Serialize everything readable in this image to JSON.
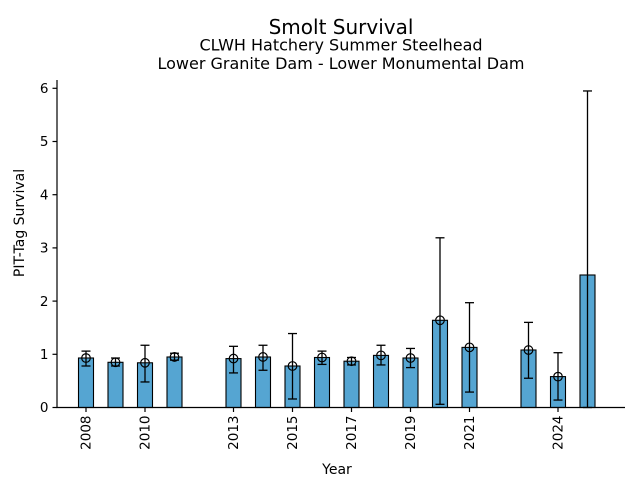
{
  "chart_data": {
    "type": "bar",
    "title": "Smolt Survival",
    "subtitle_line1": "CLWH Hatchery Summer Steelhead",
    "subtitle_line2": "Lower Granite Dam - Lower Monumental Dam",
    "xlabel": "Year",
    "ylabel": "PIT-Tag Survival",
    "ylim": [
      0,
      6.15
    ],
    "yticks": [
      0,
      1,
      2,
      3,
      4,
      5,
      6
    ],
    "xlim": [
      2007.0,
      2026.3
    ],
    "xticks": [
      2008,
      2010,
      2013,
      2015,
      2017,
      2019,
      2021,
      2024
    ],
    "grid": false,
    "legend": "none",
    "bar_color": "#55A5D2",
    "bar_edge_color": "#000000",
    "errorbar_color": "#000000",
    "marker_style": "open-circle",
    "points": [
      {
        "year": 2008,
        "value": 0.93,
        "err_low": 0.78,
        "err_high": 1.06,
        "marker": true
      },
      {
        "year": 2009,
        "value": 0.85,
        "err_low": 0.78,
        "err_high": 0.93,
        "marker": true
      },
      {
        "year": 2010,
        "value": 0.84,
        "err_low": 0.48,
        "err_high": 1.17,
        "marker": true
      },
      {
        "year": 2011,
        "value": 0.95,
        "err_low": 0.89,
        "err_high": 1.02,
        "marker": true
      },
      {
        "year": 2013,
        "value": 0.92,
        "err_low": 0.65,
        "err_high": 1.15,
        "marker": true
      },
      {
        "year": 2014,
        "value": 0.95,
        "err_low": 0.7,
        "err_high": 1.17,
        "marker": true
      },
      {
        "year": 2015,
        "value": 0.78,
        "err_low": 0.16,
        "err_high": 1.39,
        "marker": true
      },
      {
        "year": 2016,
        "value": 0.94,
        "err_low": 0.81,
        "err_high": 1.06,
        "marker": true
      },
      {
        "year": 2017,
        "value": 0.87,
        "err_low": 0.8,
        "err_high": 0.94,
        "marker": true
      },
      {
        "year": 2018,
        "value": 0.98,
        "err_low": 0.8,
        "err_high": 1.17,
        "marker": true
      },
      {
        "year": 2019,
        "value": 0.93,
        "err_low": 0.75,
        "err_high": 1.11,
        "marker": true
      },
      {
        "year": 2020,
        "value": 1.64,
        "err_low": 0.06,
        "err_high": 3.19,
        "marker": true
      },
      {
        "year": 2021,
        "value": 1.13,
        "err_low": 0.29,
        "err_high": 1.97,
        "marker": true
      },
      {
        "year": 2023,
        "value": 1.08,
        "err_low": 0.55,
        "err_high": 1.6,
        "marker": true
      },
      {
        "year": 2024,
        "value": 0.58,
        "err_low": 0.14,
        "err_high": 1.03,
        "marker": true
      },
      {
        "year": 2025,
        "value": 2.49,
        "err_low": 0.0,
        "err_high": 5.95,
        "marker": false
      }
    ]
  }
}
